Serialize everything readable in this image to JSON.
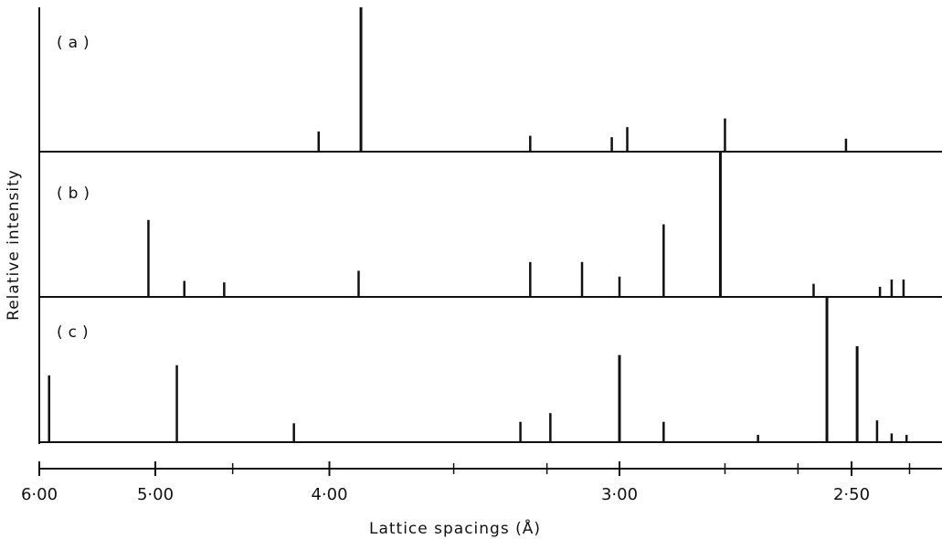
{
  "chart_data": {
    "type": "bar",
    "xlabel": "Lattice spacings  (Å)",
    "ylabel": "Relative intensity",
    "x_axis": {
      "scale": "reciprocal",
      "reversed": true,
      "tick_labels": [
        "6·00",
        "5·00",
        "4·00",
        "3·00",
        "2·50"
      ],
      "tick_values": [
        6.0,
        5.0,
        4.0,
        3.0,
        2.5
      ],
      "minor_ticks": [
        4.5,
        3.5,
        3.2,
        2.75,
        2.6,
        2.4
      ]
    },
    "panels": [
      {
        "label": "(a)",
        "peaks": [
          {
            "d": 4.05,
            "i": 14
          },
          {
            "d": 3.86,
            "i": 100
          },
          {
            "d": 3.25,
            "i": 11
          },
          {
            "d": 3.02,
            "i": 10
          },
          {
            "d": 2.98,
            "i": 17
          },
          {
            "d": 2.75,
            "i": 23
          },
          {
            "d": 2.51,
            "i": 9
          }
        ]
      },
      {
        "label": "(b)",
        "peaks": [
          {
            "d": 5.05,
            "i": 53
          },
          {
            "d": 4.8,
            "i": 11
          },
          {
            "d": 4.55,
            "i": 10
          },
          {
            "d": 3.87,
            "i": 18
          },
          {
            "d": 3.25,
            "i": 24
          },
          {
            "d": 3.1,
            "i": 24
          },
          {
            "d": 3.0,
            "i": 14
          },
          {
            "d": 2.89,
            "i": 50
          },
          {
            "d": 2.76,
            "i": 100
          },
          {
            "d": 2.57,
            "i": 9
          },
          {
            "d": 2.45,
            "i": 7
          },
          {
            "d": 2.43,
            "i": 12
          },
          {
            "d": 2.41,
            "i": 12
          }
        ]
      },
      {
        "label": "(c)",
        "peaks": [
          {
            "d": 5.9,
            "i": 46
          },
          {
            "d": 4.85,
            "i": 53
          },
          {
            "d": 4.17,
            "i": 13
          },
          {
            "d": 3.28,
            "i": 14
          },
          {
            "d": 3.19,
            "i": 20
          },
          {
            "d": 3.0,
            "i": 60
          },
          {
            "d": 2.89,
            "i": 14
          },
          {
            "d": 2.68,
            "i": 5
          },
          {
            "d": 2.545,
            "i": 100
          },
          {
            "d": 2.49,
            "i": 66
          },
          {
            "d": 2.455,
            "i": 15
          },
          {
            "d": 2.43,
            "i": 6
          },
          {
            "d": 2.405,
            "i": 5
          }
        ]
      }
    ]
  }
}
